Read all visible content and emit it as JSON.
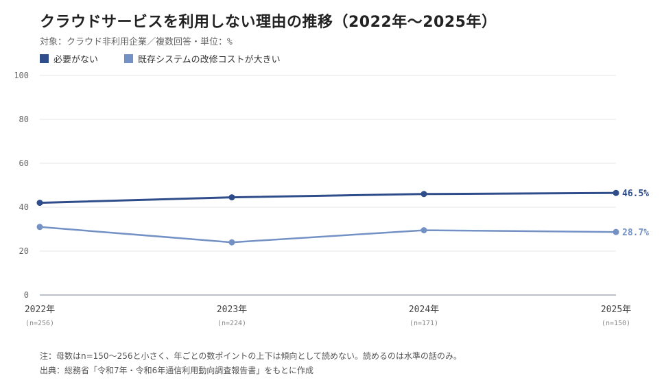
{
  "header": {
    "title": "クラウドサービスを利用しない理由の推移（2022年〜2025年）",
    "subtitle": "対象：クラウド非利用企業／複数回答・単位：%"
  },
  "legend": [
    {
      "label": "必要がない",
      "color": "#2f4d8a"
    },
    {
      "label": "既存システムの改修コストが大きい",
      "color": "#7391c4"
    }
  ],
  "chart_data": {
    "type": "line",
    "title": "クラウドサービスを利用しない理由の推移（2022年〜2025年）",
    "subtitle": "対象：クラウド非利用企業／複数回答・単位：%",
    "categories": [
      "2022年",
      "2023年",
      "2024年",
      "2025年"
    ],
    "category_notes": [
      "(n=256)",
      "(n=224)",
      "(n=171)",
      "(n=150)"
    ],
    "ylim": [
      0,
      100
    ],
    "yticks": [
      0,
      20,
      40,
      60,
      80,
      100
    ],
    "grid": true,
    "legend_position": "top-left",
    "series": [
      {
        "name": "必要がない",
        "color": "#2f4d8a",
        "values": [
          42.0,
          44.5,
          46.0,
          46.5
        ],
        "end_label": "46.5%"
      },
      {
        "name": "既存システムの改修コストが大きい",
        "color": "#7391c4",
        "values": [
          31.0,
          24.0,
          29.5,
          28.7
        ],
        "end_label": "28.7%"
      }
    ]
  },
  "footnotes": {
    "note": "注：母数はn=150〜256と小さく、年ごとの数ポイントの上下は傾向として読めない。読めるのは水準の話のみ。",
    "source": "出典：総務省「令和7年・令和6年通信利用動向調査報告書」をもとに作成"
  }
}
